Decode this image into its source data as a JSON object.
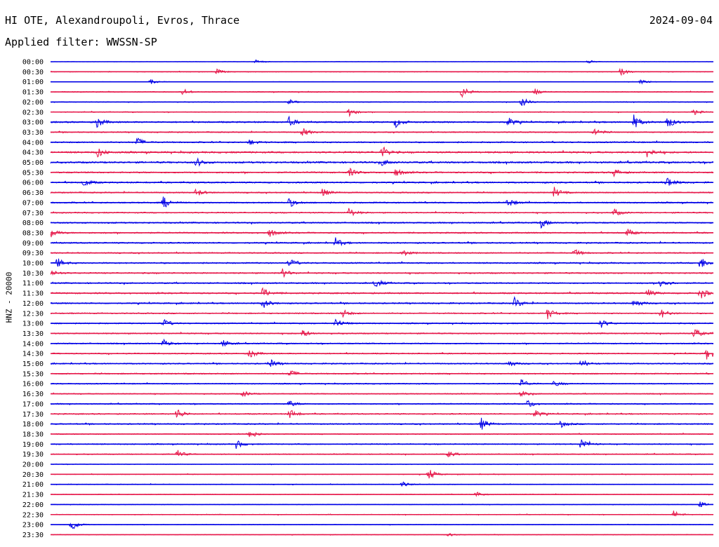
{
  "header": {
    "title": "HI OTE, Alexandroupoli, Evros, Thrace",
    "date": "2024-09-04",
    "filter": "Applied filter: WWSSN-SP"
  },
  "chart_data": {
    "type": "line",
    "ylabel": "HNZ - 20000",
    "colors": [
      "#0000e6",
      "#e6194b"
    ],
    "row_labels": [
      "00:00",
      "00:30",
      "01:00",
      "01:30",
      "02:00",
      "02:30",
      "03:00",
      "03:30",
      "04:00",
      "04:30",
      "05:00",
      "05:30",
      "06:00",
      "06:30",
      "07:00",
      "07:30",
      "08:00",
      "08:30",
      "09:00",
      "09:30",
      "10:00",
      "10:30",
      "11:00",
      "11:30",
      "12:00",
      "12:30",
      "13:00",
      "13:30",
      "14:00",
      "14:30",
      "15:00",
      "15:30",
      "16:00",
      "16:30",
      "17:00",
      "17:30",
      "18:00",
      "18:30",
      "19:00",
      "19:30",
      "20:00",
      "20:30",
      "21:00",
      "21:30",
      "22:00",
      "22:30",
      "23:00",
      "23:30"
    ],
    "row_noise_level": [
      0.15,
      0.3,
      0.2,
      0.35,
      0.3,
      0.35,
      0.6,
      0.45,
      0.55,
      0.7,
      0.7,
      0.6,
      0.6,
      0.5,
      0.55,
      0.5,
      0.55,
      0.55,
      0.55,
      0.5,
      0.55,
      0.55,
      0.55,
      0.6,
      0.55,
      0.5,
      0.5,
      0.5,
      0.5,
      0.5,
      0.5,
      0.5,
      0.45,
      0.4,
      0.45,
      0.5,
      0.5,
      0.4,
      0.45,
      0.4,
      0.25,
      0.3,
      0.3,
      0.3,
      0.25,
      0.3,
      0.25,
      0.2
    ],
    "events": [
      {
        "row": 0,
        "t": 0.31,
        "a": 0.5
      },
      {
        "row": 0,
        "t": 0.81,
        "a": 0.4
      },
      {
        "row": 1,
        "t": 0.25,
        "a": 0.6
      },
      {
        "row": 1,
        "t": 0.86,
        "a": 0.8
      },
      {
        "row": 2,
        "t": 0.15,
        "a": 0.5
      },
      {
        "row": 2,
        "t": 0.89,
        "a": 0.5
      },
      {
        "row": 3,
        "t": 0.2,
        "a": 0.7
      },
      {
        "row": 3,
        "t": 0.62,
        "a": 1.3
      },
      {
        "row": 3,
        "t": 0.73,
        "a": 0.7
      },
      {
        "row": 4,
        "t": 0.36,
        "a": 0.5
      },
      {
        "row": 4,
        "t": 0.71,
        "a": 1.2
      },
      {
        "row": 5,
        "t": 0.45,
        "a": 1.0
      },
      {
        "row": 5,
        "t": 0.97,
        "a": 0.6
      },
      {
        "row": 6,
        "t": 0.07,
        "a": 1.2
      },
      {
        "row": 6,
        "t": 0.36,
        "a": 1.0
      },
      {
        "row": 6,
        "t": 0.52,
        "a": 1.1
      },
      {
        "row": 6,
        "t": 0.69,
        "a": 1.0
      },
      {
        "row": 6,
        "t": 0.88,
        "a": 1.4
      },
      {
        "row": 6,
        "t": 0.93,
        "a": 1.4
      },
      {
        "row": 7,
        "t": 0.38,
        "a": 1.0
      },
      {
        "row": 7,
        "t": 0.82,
        "a": 1.0
      },
      {
        "row": 8,
        "t": 0.13,
        "a": 1.0
      },
      {
        "row": 8,
        "t": 0.3,
        "a": 0.6
      },
      {
        "row": 9,
        "t": 0.07,
        "a": 1.2
      },
      {
        "row": 9,
        "t": 0.5,
        "a": 1.3
      },
      {
        "row": 9,
        "t": 0.9,
        "a": 1.1
      },
      {
        "row": 10,
        "t": 0.22,
        "a": 0.9
      },
      {
        "row": 10,
        "t": 0.5,
        "a": 0.7
      },
      {
        "row": 11,
        "t": 0.45,
        "a": 0.9
      },
      {
        "row": 11,
        "t": 0.52,
        "a": 0.9
      },
      {
        "row": 11,
        "t": 0.85,
        "a": 0.8
      },
      {
        "row": 12,
        "t": 0.05,
        "a": 0.9
      },
      {
        "row": 12,
        "t": 0.93,
        "a": 1.2
      },
      {
        "row": 13,
        "t": 0.22,
        "a": 0.9
      },
      {
        "row": 13,
        "t": 0.41,
        "a": 0.9
      },
      {
        "row": 13,
        "t": 0.76,
        "a": 1.1
      },
      {
        "row": 14,
        "t": 0.17,
        "a": 1.3
      },
      {
        "row": 14,
        "t": 0.36,
        "a": 1.0
      },
      {
        "row": 14,
        "t": 0.69,
        "a": 1.0
      },
      {
        "row": 15,
        "t": 0.45,
        "a": 1.0
      },
      {
        "row": 15,
        "t": 0.85,
        "a": 0.8
      },
      {
        "row": 16,
        "t": 0.74,
        "a": 1.0
      },
      {
        "row": 17,
        "t": 0.0,
        "a": 1.1
      },
      {
        "row": 17,
        "t": 0.33,
        "a": 0.9
      },
      {
        "row": 17,
        "t": 0.87,
        "a": 0.8
      },
      {
        "row": 18,
        "t": 0.43,
        "a": 1.0
      },
      {
        "row": 19,
        "t": 0.53,
        "a": 0.8
      },
      {
        "row": 19,
        "t": 0.79,
        "a": 0.8
      },
      {
        "row": 20,
        "t": 0.01,
        "a": 1.0
      },
      {
        "row": 20,
        "t": 0.36,
        "a": 0.9
      },
      {
        "row": 20,
        "t": 0.98,
        "a": 1.4
      },
      {
        "row": 21,
        "t": 0.0,
        "a": 0.8
      },
      {
        "row": 21,
        "t": 0.35,
        "a": 0.9
      },
      {
        "row": 22,
        "t": 0.49,
        "a": 1.0
      },
      {
        "row": 22,
        "t": 0.92,
        "a": 1.2
      },
      {
        "row": 23,
        "t": 0.32,
        "a": 1.0
      },
      {
        "row": 23,
        "t": 0.9,
        "a": 0.9
      },
      {
        "row": 23,
        "t": 0.98,
        "a": 1.4
      },
      {
        "row": 24,
        "t": 0.32,
        "a": 1.1
      },
      {
        "row": 24,
        "t": 0.7,
        "a": 1.1
      },
      {
        "row": 24,
        "t": 0.88,
        "a": 1.0
      },
      {
        "row": 25,
        "t": 0.44,
        "a": 0.9
      },
      {
        "row": 25,
        "t": 0.75,
        "a": 1.1
      },
      {
        "row": 25,
        "t": 0.92,
        "a": 1.1
      },
      {
        "row": 26,
        "t": 0.17,
        "a": 0.9
      },
      {
        "row": 26,
        "t": 0.43,
        "a": 1.2
      },
      {
        "row": 26,
        "t": 0.83,
        "a": 0.9
      },
      {
        "row": 27,
        "t": 0.38,
        "a": 0.8
      },
      {
        "row": 27,
        "t": 0.97,
        "a": 1.2
      },
      {
        "row": 28,
        "t": 0.17,
        "a": 0.8
      },
      {
        "row": 28,
        "t": 0.26,
        "a": 0.8
      },
      {
        "row": 29,
        "t": 0.3,
        "a": 1.0
      },
      {
        "row": 29,
        "t": 0.99,
        "a": 1.3
      },
      {
        "row": 30,
        "t": 0.33,
        "a": 1.0
      },
      {
        "row": 30,
        "t": 0.69,
        "a": 0.8
      },
      {
        "row": 30,
        "t": 0.8,
        "a": 0.8
      },
      {
        "row": 31,
        "t": 0.36,
        "a": 0.9
      },
      {
        "row": 32,
        "t": 0.71,
        "a": 1.0
      },
      {
        "row": 32,
        "t": 0.76,
        "a": 0.6
      },
      {
        "row": 33,
        "t": 0.29,
        "a": 0.7
      },
      {
        "row": 33,
        "t": 0.71,
        "a": 0.7
      },
      {
        "row": 34,
        "t": 0.36,
        "a": 0.7
      },
      {
        "row": 34,
        "t": 0.72,
        "a": 0.9
      },
      {
        "row": 35,
        "t": 0.19,
        "a": 1.3
      },
      {
        "row": 35,
        "t": 0.36,
        "a": 1.1
      },
      {
        "row": 35,
        "t": 0.73,
        "a": 0.9
      },
      {
        "row": 36,
        "t": 0.65,
        "a": 1.2
      },
      {
        "row": 36,
        "t": 0.77,
        "a": 0.7
      },
      {
        "row": 37,
        "t": 0.3,
        "a": 1.0
      },
      {
        "row": 38,
        "t": 0.28,
        "a": 0.9
      },
      {
        "row": 38,
        "t": 0.8,
        "a": 1.4
      },
      {
        "row": 39,
        "t": 0.19,
        "a": 1.0
      },
      {
        "row": 39,
        "t": 0.6,
        "a": 0.7
      },
      {
        "row": 41,
        "t": 0.57,
        "a": 1.3
      },
      {
        "row": 42,
        "t": 0.53,
        "a": 0.6
      },
      {
        "row": 43,
        "t": 0.64,
        "a": 0.7
      },
      {
        "row": 44,
        "t": 0.98,
        "a": 0.6
      },
      {
        "row": 45,
        "t": 0.94,
        "a": 0.8
      },
      {
        "row": 46,
        "t": 0.03,
        "a": 1.6
      },
      {
        "row": 47,
        "t": 0.6,
        "a": 0.4
      }
    ]
  }
}
